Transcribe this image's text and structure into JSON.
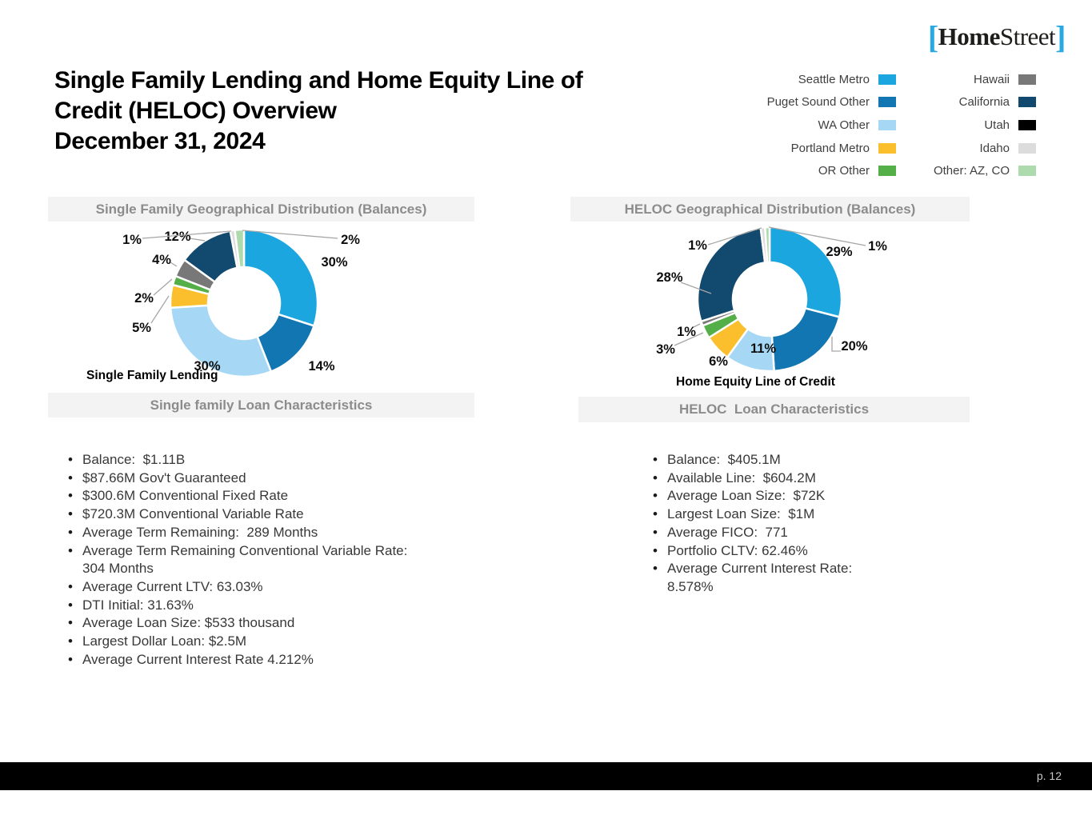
{
  "logo": {
    "bracket_open": "[",
    "name_bold": "Home",
    "name_regular": "Street",
    "bracket_close": "]"
  },
  "title": {
    "line1": "Single Family Lending and Home Equity Line of",
    "line2": "Credit (HELOC) Overview",
    "line3": "December 31, 2024"
  },
  "legend": {
    "position": "top-right",
    "columns": [
      [
        {
          "label": "Seattle Metro",
          "color": "#1ba6df"
        },
        {
          "label": "Puget Sound Other",
          "color": "#1276b3"
        },
        {
          "label": "WA Other",
          "color": "#a6d8f5"
        },
        {
          "label": "Portland Metro",
          "color": "#fbbe2d"
        },
        {
          "label": "OR Other",
          "color": "#55af49"
        }
      ],
      [
        {
          "label": "Hawaii",
          "color": "#787878"
        },
        {
          "label": "California",
          "color": "#12496e"
        },
        {
          "label": "Utah",
          "color": "#000000"
        },
        {
          "label": "Idaho",
          "color": "#dcdcdc"
        },
        {
          "label": "Other: AZ, CO",
          "color": "#aedbae"
        }
      ]
    ]
  },
  "chart_data": [
    {
      "type": "pie",
      "shape": "donut",
      "title": "Single Family Geographical Distribution (Balances)",
      "caption": "Single Family Lending",
      "series": [
        {
          "name": "Seattle Metro",
          "value": 30,
          "label": "30%"
        },
        {
          "name": "Puget Sound Other",
          "value": 14,
          "label": "14%"
        },
        {
          "name": "WA Other",
          "value": 30,
          "label": "30%"
        },
        {
          "name": "Portland Metro",
          "value": 5,
          "label": "5%"
        },
        {
          "name": "OR Other",
          "value": 2,
          "label": "2%"
        },
        {
          "name": "Hawaii",
          "value": 4,
          "label": "4%"
        },
        {
          "name": "California",
          "value": 12,
          "label": "12%"
        },
        {
          "name": "Idaho",
          "value": 1,
          "label": "1%"
        },
        {
          "name": "Other: AZ, CO",
          "value": 2,
          "label": "2%"
        }
      ]
    },
    {
      "type": "pie",
      "shape": "donut",
      "title": "HELOC Geographical Distribution (Balances)",
      "caption": "Home Equity Line of Credit",
      "series": [
        {
          "name": "Seattle Metro",
          "value": 29,
          "label": "29%"
        },
        {
          "name": "Puget Sound Other",
          "value": 20,
          "label": "20%"
        },
        {
          "name": "WA Other",
          "value": 11,
          "label": "11%"
        },
        {
          "name": "Portland Metro",
          "value": 6,
          "label": "6%"
        },
        {
          "name": "OR Other",
          "value": 3,
          "label": "3%"
        },
        {
          "name": "Hawaii",
          "value": 1,
          "label": "1%"
        },
        {
          "name": "California",
          "value": 28,
          "label": "28%"
        },
        {
          "name": "Idaho",
          "value": 1,
          "label": "1%"
        },
        {
          "name": "Other: AZ, CO",
          "value": 1,
          "label": "1%"
        }
      ]
    }
  ],
  "single_family_characteristics": {
    "header": "Single family Loan Characteristics",
    "items": [
      "Balance:  $1.11B",
      "$87.66M Gov't Guaranteed",
      "$300.6M Conventional Fixed Rate",
      "$720.3M Conventional Variable Rate",
      "Average Term Remaining:  289 Months",
      "Average Term Remaining Conventional Variable Rate:  304 Months",
      "Average Current LTV: 63.03%",
      "DTI Initial: 31.63%",
      "Average Loan Size: $533 thousand",
      "Largest Dollar Loan: $2.5M",
      "Average Current Interest Rate 4.212%"
    ]
  },
  "heloc_characteristics": {
    "header": "HELOC  Loan Characteristics",
    "items": [
      "Balance:  $405.1M",
      "Available Line:  $604.2M",
      "Average Loan Size:  $72K",
      "Largest Loan Size:  $1M",
      "Average FICO:  771",
      "Portfolio CLTV: 62.46%",
      "Average Current Interest Rate: 8.578%"
    ]
  },
  "footer": {
    "page_label": "p. 12"
  },
  "colors": {
    "accent_blue": "#29a9e2",
    "header_bar_bg": "#f3f3f3",
    "header_bar_text": "#8c8c8c",
    "footer_bg": "#000000"
  }
}
